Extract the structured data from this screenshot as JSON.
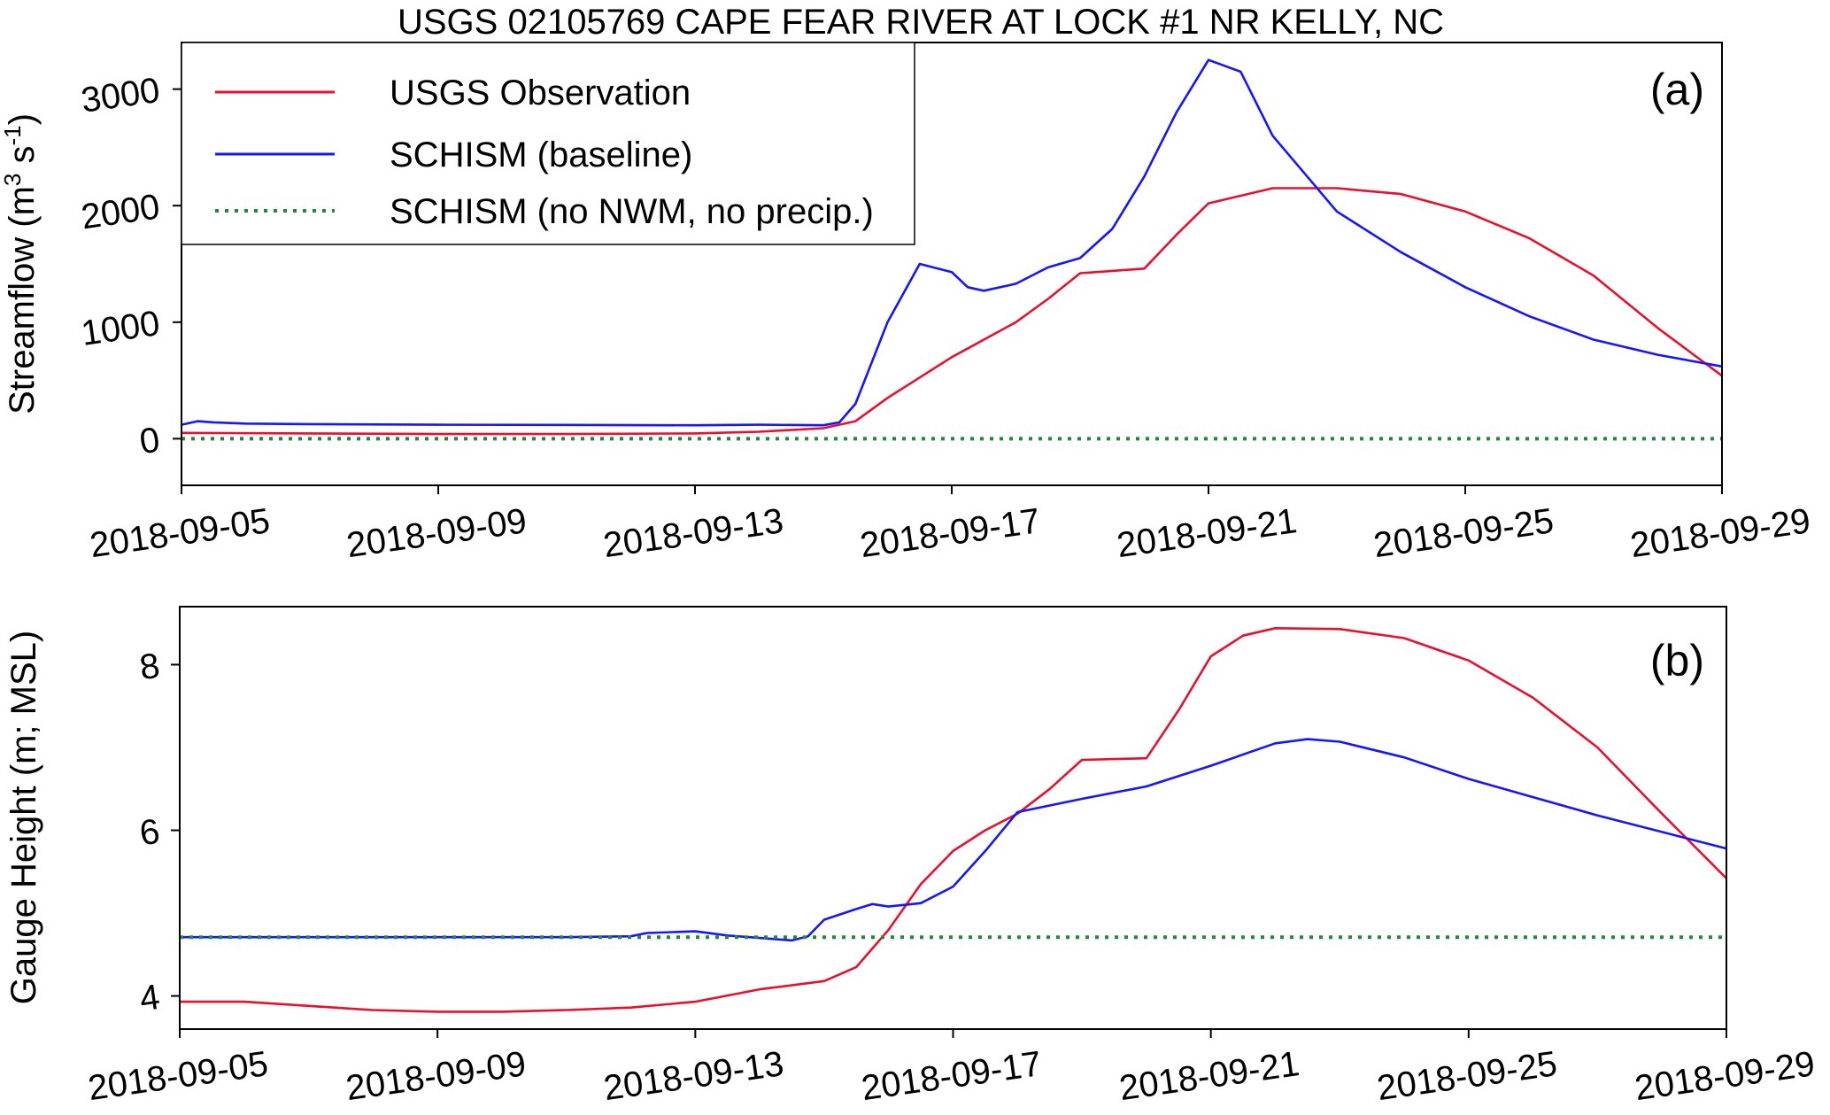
{
  "chart_data": [
    {
      "id": "a",
      "type": "line",
      "title": "USGS 02105769 CAPE FEAR RIVER AT LOCK #1 NR KELLY, NC",
      "panel_label": "(a)",
      "ylabel_main": "Streamflow (m",
      "ylabel_sup1": "3",
      "ylabel_mid": " s",
      "ylabel_sup2": "-1",
      "ylabel_end": ")",
      "xlabel": "",
      "xlim": [
        "2018-09-05",
        "2018-09-29"
      ],
      "ylim": [
        -400,
        3400
      ],
      "xticks": [
        "2018-09-05",
        "2018-09-09",
        "2018-09-13",
        "2018-09-17",
        "2018-09-21",
        "2018-09-25",
        "2018-09-29"
      ],
      "yticks": [
        0,
        1000,
        2000,
        3000
      ],
      "ytick_labels": [
        "0",
        "1000",
        "2000",
        "3000"
      ],
      "grid": false,
      "legend": {
        "position": "top-left",
        "entries": [
          {
            "label": "USGS Observation",
            "color": "#e8102e",
            "style": "solid"
          },
          {
            "label": "SCHISM (baseline)",
            "color": "#1515ff",
            "style": "solid"
          },
          {
            "label": "SCHISM (no NWM, no precip.)",
            "color": "#1f8a3a",
            "style": "dotted"
          }
        ]
      },
      "series": [
        {
          "name": "USGS Observation",
          "color": "#e8102e",
          "style": "solid",
          "x": [
            "2018-09-05",
            "2018-09-07",
            "2018-09-09",
            "2018-09-11",
            "2018-09-13",
            "2018-09-14",
            "2018-09-15",
            "2018-09-15T12",
            "2018-09-16",
            "2018-09-17",
            "2018-09-18",
            "2018-09-18T12",
            "2018-09-19",
            "2018-09-19T12",
            "2018-09-20",
            "2018-09-20T12",
            "2018-09-21",
            "2018-09-22",
            "2018-09-23",
            "2018-09-24",
            "2018-09-25",
            "2018-09-26",
            "2018-09-27",
            "2018-09-28",
            "2018-09-29"
          ],
          "y": [
            50,
            45,
            40,
            40,
            45,
            60,
            90,
            150,
            350,
            700,
            1000,
            1200,
            1420,
            1440,
            1460,
            1750,
            2020,
            2150,
            2150,
            2100,
            1950,
            1720,
            1400,
            950,
            540
          ]
        },
        {
          "name": "SCHISM (baseline)",
          "color": "#1515ff",
          "style": "solid",
          "x": [
            "2018-09-05",
            "2018-09-05T06",
            "2018-09-05T12",
            "2018-09-06",
            "2018-09-07",
            "2018-09-09",
            "2018-09-11",
            "2018-09-13",
            "2018-09-14",
            "2018-09-15",
            "2018-09-15T06",
            "2018-09-15T12",
            "2018-09-16",
            "2018-09-16T12",
            "2018-09-17",
            "2018-09-17T06",
            "2018-09-17T12",
            "2018-09-18",
            "2018-09-18T12",
            "2018-09-19",
            "2018-09-19T12",
            "2018-09-20",
            "2018-09-20T12",
            "2018-09-21",
            "2018-09-21T12",
            "2018-09-22",
            "2018-09-23",
            "2018-09-24",
            "2018-09-25",
            "2018-09-26",
            "2018-09-27",
            "2018-09-28",
            "2018-09-29"
          ],
          "y": [
            120,
            150,
            140,
            130,
            125,
            120,
            118,
            115,
            120,
            115,
            140,
            300,
            1000,
            1500,
            1430,
            1300,
            1270,
            1330,
            1470,
            1550,
            1800,
            2250,
            2800,
            3250,
            3150,
            2600,
            1950,
            1600,
            1300,
            1050,
            850,
            720,
            620
          ]
        },
        {
          "name": "SCHISM (no NWM, no precip.)",
          "color": "#1f8a3a",
          "style": "dotted",
          "x": [
            "2018-09-05",
            "2018-09-29"
          ],
          "y": [
            0,
            0
          ]
        }
      ]
    },
    {
      "id": "b",
      "type": "line",
      "panel_label": "(b)",
      "ylabel": "Gauge Height (m; MSL)",
      "xlabel": "",
      "xlim": [
        "2018-09-05",
        "2018-09-29"
      ],
      "ylim": [
        3.6,
        8.7
      ],
      "xticks": [
        "2018-09-05",
        "2018-09-09",
        "2018-09-13",
        "2018-09-17",
        "2018-09-21",
        "2018-09-25",
        "2018-09-29"
      ],
      "yticks": [
        4,
        6,
        8
      ],
      "ytick_labels": [
        "4",
        "6",
        "8"
      ],
      "grid": false,
      "series": [
        {
          "name": "USGS Observation",
          "color": "#e8102e",
          "style": "solid",
          "x": [
            "2018-09-05",
            "2018-09-06",
            "2018-09-07",
            "2018-09-08",
            "2018-09-09",
            "2018-09-10",
            "2018-09-11",
            "2018-09-12",
            "2018-09-13",
            "2018-09-14",
            "2018-09-15",
            "2018-09-15T12",
            "2018-09-16",
            "2018-09-16T12",
            "2018-09-17",
            "2018-09-17T12",
            "2018-09-18",
            "2018-09-18T12",
            "2018-09-19",
            "2018-09-19T12",
            "2018-09-20",
            "2018-09-20T12",
            "2018-09-21",
            "2018-09-21T12",
            "2018-09-22",
            "2018-09-23",
            "2018-09-24",
            "2018-09-25",
            "2018-09-26",
            "2018-09-27",
            "2018-09-28",
            "2018-09-29"
          ],
          "y": [
            3.93,
            3.93,
            3.88,
            3.83,
            3.81,
            3.81,
            3.83,
            3.86,
            3.93,
            4.08,
            4.18,
            4.35,
            4.8,
            5.35,
            5.75,
            6.0,
            6.2,
            6.5,
            6.85,
            6.86,
            6.87,
            7.45,
            8.1,
            8.35,
            8.44,
            8.43,
            8.32,
            8.05,
            7.6,
            7.0,
            6.2,
            5.42
          ]
        },
        {
          "name": "SCHISM (baseline)",
          "color": "#1515ff",
          "style": "solid",
          "x": [
            "2018-09-05",
            "2018-09-11",
            "2018-09-12",
            "2018-09-12T06",
            "2018-09-13",
            "2018-09-13T12",
            "2018-09-14",
            "2018-09-14T12",
            "2018-09-14T18",
            "2018-09-15",
            "2018-09-15T12",
            "2018-09-15T18",
            "2018-09-16",
            "2018-09-16T12",
            "2018-09-17",
            "2018-09-17T12",
            "2018-09-18",
            "2018-09-19",
            "2018-09-20",
            "2018-09-21",
            "2018-09-22",
            "2018-09-22T12",
            "2018-09-23",
            "2018-09-24",
            "2018-09-25",
            "2018-09-26",
            "2018-09-27",
            "2018-09-28",
            "2018-09-29"
          ],
          "y": [
            4.71,
            4.71,
            4.72,
            4.76,
            4.78,
            4.73,
            4.7,
            4.67,
            4.72,
            4.92,
            5.05,
            5.11,
            5.08,
            5.12,
            5.32,
            5.75,
            6.22,
            6.38,
            6.53,
            6.78,
            7.05,
            7.1,
            7.07,
            6.88,
            6.62,
            6.4,
            6.18,
            5.98,
            5.78
          ]
        },
        {
          "name": "SCHISM (no NWM, no precip.)",
          "color": "#1f8a3a",
          "style": "dotted",
          "x": [
            "2018-09-05",
            "2018-09-29"
          ],
          "y": [
            4.71,
            4.71
          ]
        }
      ]
    }
  ]
}
